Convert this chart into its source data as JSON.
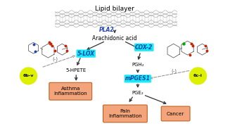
{
  "title": "Lipid bilayer",
  "bg_color": "#ffffff",
  "pla2_label": "PLA2",
  "arachidonic_acid_label": "Arachidonic acid",
  "cox2_label": "COX-2",
  "lox_label": "5-LOX",
  "mpges1_label": "mPGES1",
  "pgh2_label": "PGH₂",
  "pge2_label": "PGE₂",
  "hpete_label": "5-HPETE",
  "compound1_label": "6b-v",
  "compound2_label": "6c-i",
  "inhibit_label": "(-)",
  "box1_label": "Asthma\nInflammation",
  "box2_label": "Pain\nInflammation",
  "box3_label": "Cancer",
  "box_facecolor": "#f4a47a",
  "box_edgecolor": "#c06020",
  "cyan_bg": "#00e8f8",
  "pla2_color": "#2244bb",
  "compound_circle_color": "#ddf000",
  "arrow_color": "#333333",
  "dashed_arrow_color": "#999999",
  "figsize": [
    3.27,
    1.89
  ],
  "dpi": 100
}
